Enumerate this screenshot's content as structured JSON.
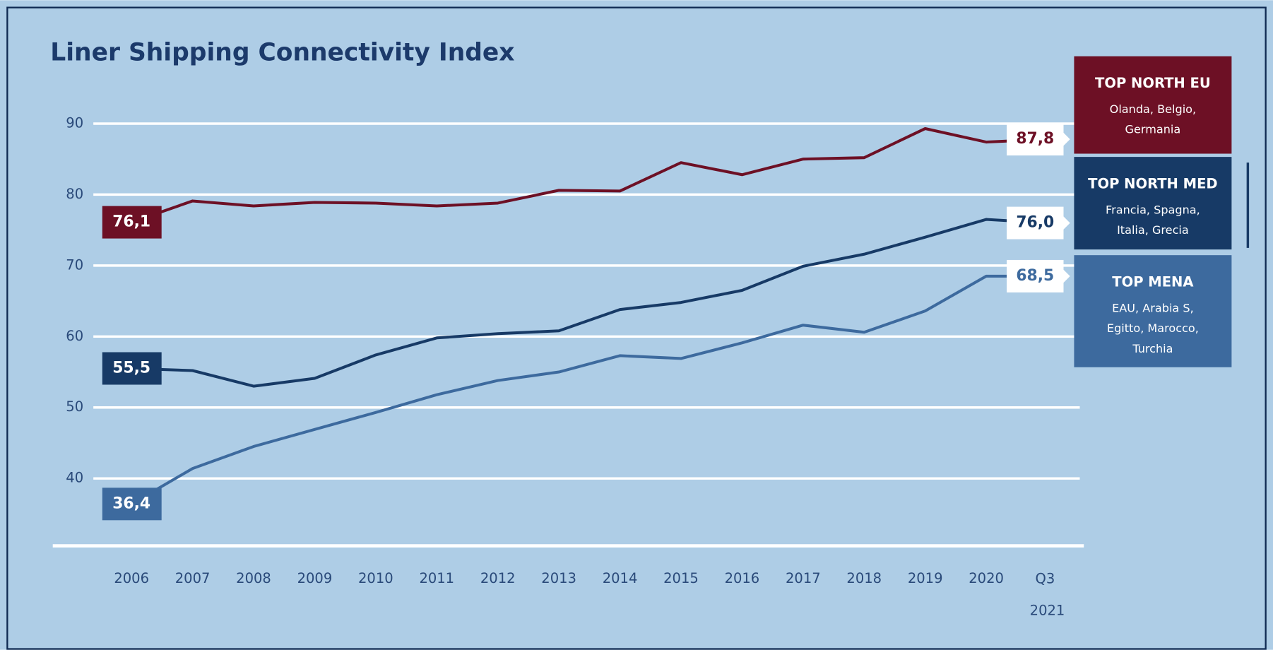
{
  "chart_data": {
    "type": "line",
    "title": "Liner Shipping Connectivity Index",
    "categories": [
      "2006",
      "2007",
      "2008",
      "2009",
      "2010",
      "2011",
      "2012",
      "2013",
      "2014",
      "2015",
      "2016",
      "2017",
      "2018",
      "2019",
      "2020",
      "Q3 2021"
    ],
    "series": [
      {
        "name": "TOP NORTH EU",
        "countries": [
          "Olanda, Belgio,",
          "Germania"
        ],
        "color": "#6d1025",
        "values": [
          76.1,
          79.1,
          78.4,
          78.9,
          78.8,
          78.4,
          78.8,
          80.6,
          80.5,
          84.5,
          82.8,
          85.0,
          85.2,
          89.3,
          87.4,
          87.8
        ],
        "value_labels": [
          "76,1",
          null,
          null,
          null,
          null,
          null,
          null,
          null,
          null,
          null,
          null,
          null,
          null,
          null,
          null,
          "87,8"
        ]
      },
      {
        "name": "TOP NORTH MED",
        "countries": [
          "Francia, Spagna,",
          "Italia, Grecia"
        ],
        "color": "#173a66",
        "values": [
          55.5,
          55.2,
          53.0,
          54.1,
          57.4,
          59.8,
          60.4,
          60.8,
          63.8,
          64.8,
          66.5,
          69.9,
          71.6,
          74.0,
          76.5,
          76.0
        ],
        "value_labels": [
          "55,5",
          null,
          null,
          null,
          null,
          null,
          null,
          null,
          null,
          null,
          null,
          null,
          null,
          null,
          null,
          "76,0"
        ]
      },
      {
        "name": "TOP MENA",
        "countries": [
          "EAU, Arabia S,",
          "Egitto, Marocco,",
          "Turchia"
        ],
        "color": "#3d6a9e",
        "values": [
          36.4,
          41.4,
          44.5,
          46.9,
          49.3,
          51.8,
          53.8,
          55.0,
          57.3,
          56.9,
          59.1,
          61.6,
          60.6,
          63.6,
          68.5,
          68.5
        ],
        "value_labels": [
          "36,4",
          null,
          null,
          null,
          null,
          null,
          null,
          null,
          null,
          null,
          null,
          null,
          null,
          null,
          null,
          "68,5"
        ]
      }
    ],
    "ylim": [
      30.5,
      92
    ],
    "yticks": [
      40,
      50,
      60,
      70,
      80,
      90
    ],
    "grid": true
  }
}
